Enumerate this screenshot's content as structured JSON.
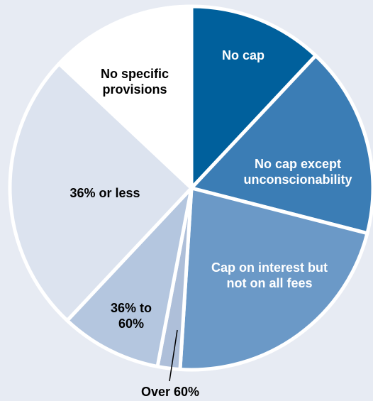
{
  "chart_data": {
    "type": "pie",
    "categories": [
      "No cap",
      "No cap except unconscionability",
      "Cap on interest but not on all fees",
      "Over 60%",
      "36% to 60%",
      "36% or less",
      "No specific provisions"
    ],
    "values": [
      12,
      17,
      22,
      2,
      9,
      25,
      13
    ],
    "colors": [
      "#00609c",
      "#3b7db5",
      "#6b99c7",
      "#aebfd9",
      "#b4c6df",
      "#dce3ef",
      "#ffffff"
    ]
  }
}
